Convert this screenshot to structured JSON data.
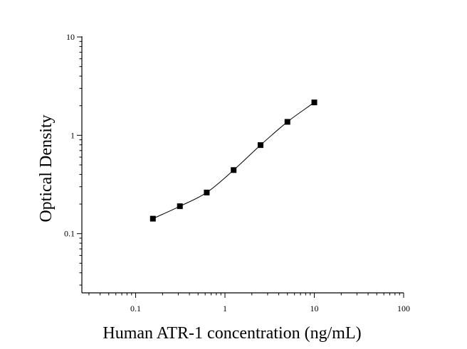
{
  "chart_data": {
    "type": "scatter",
    "title": "",
    "xlabel": "Human ATR-1 concentration (ng/mL)",
    "ylabel": "Optical Density",
    "xscale": "log",
    "yscale": "log",
    "xlim": [
      0.025,
      100
    ],
    "ylim": [
      0.025,
      10
    ],
    "grid": false,
    "legend": "none",
    "x_ticks": [
      {
        "value": 0.1,
        "label": "0.1"
      },
      {
        "value": 1,
        "label": "1"
      },
      {
        "value": 10,
        "label": "10"
      },
      {
        "value": 100,
        "label": "100"
      }
    ],
    "y_ticks": [
      {
        "value": 0.1,
        "label": "0.1"
      },
      {
        "value": 1,
        "label": "1"
      },
      {
        "value": 10,
        "label": "10"
      }
    ],
    "series": [
      {
        "x": [
          0.156,
          0.313,
          0.625,
          1.25,
          2.5,
          5,
          10
        ],
        "y": [
          0.142,
          0.19,
          0.262,
          0.443,
          0.795,
          1.37,
          2.16
        ],
        "marker": "square",
        "fit_line": true,
        "color": "#000000"
      }
    ]
  }
}
